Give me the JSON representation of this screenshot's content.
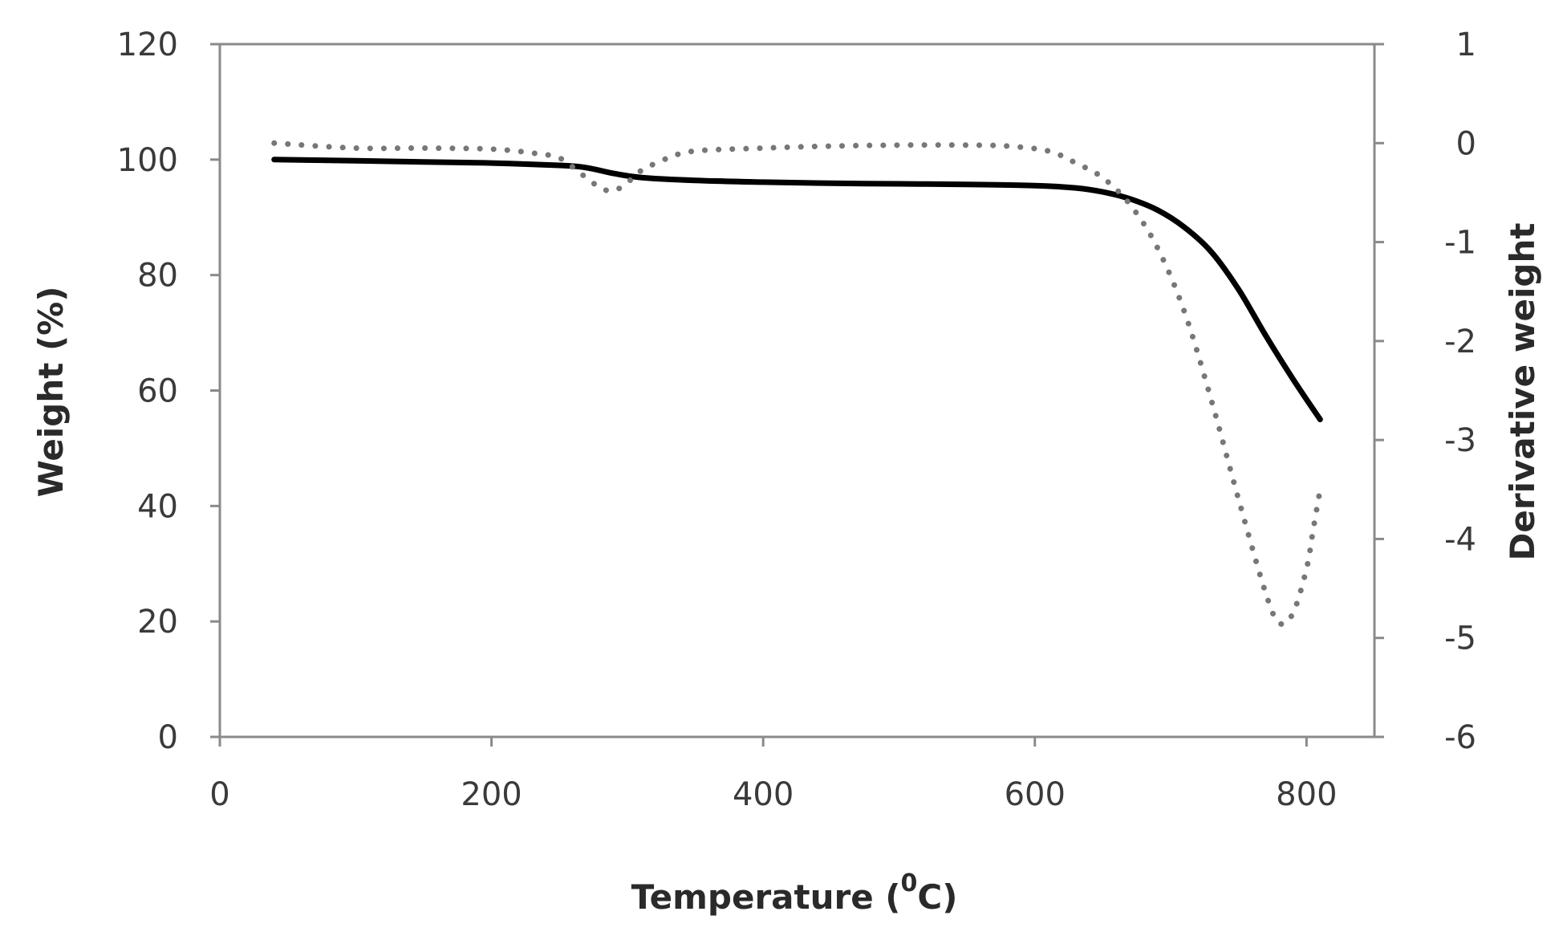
{
  "chart_data": {
    "type": "line",
    "title": "",
    "xlabel": {
      "main": "Temperature (",
      "superscript": "0",
      "unit": "C)"
    },
    "ylabel": "Weight (%)",
    "y2label": "Derivative weight",
    "xlim": [
      0,
      850
    ],
    "ylim": [
      0,
      120
    ],
    "y2lim": [
      -6,
      1
    ],
    "x_ticks": [
      "0",
      "200",
      "400",
      "600",
      "800"
    ],
    "y_ticks": [
      "0",
      "20",
      "40",
      "60",
      "80",
      "100",
      "120"
    ],
    "y2_ticks": [
      "-6",
      "-5",
      "-4",
      "-3",
      "-2",
      "-1",
      "0",
      "1"
    ],
    "grid": false,
    "legend": "none",
    "series": [
      {
        "axis": "left",
        "style": "solid",
        "color": "#000000",
        "x": [
          40,
          100,
          150,
          200,
          250,
          270,
          290,
          310,
          350,
          400,
          450,
          500,
          550,
          600,
          630,
          650,
          670,
          690,
          710,
          730,
          750,
          770,
          790,
          810
        ],
        "y": [
          100,
          99.8,
          99.6,
          99.4,
          99,
          98.6,
          97.6,
          96.9,
          96.4,
          96.1,
          95.9,
          95.8,
          95.7,
          95.5,
          95.1,
          94.4,
          93.2,
          91.3,
          88.3,
          84,
          77.5,
          69.5,
          62,
          55
        ]
      },
      {
        "axis": "right",
        "style": "dotted",
        "color": "#777777",
        "x": [
          40,
          100,
          150,
          200,
          230,
          250,
          265,
          280,
          290,
          300,
          310,
          330,
          350,
          400,
          450,
          500,
          550,
          580,
          610,
          630,
          650,
          670,
          690,
          710,
          730,
          750,
          770,
          780,
          790,
          800,
          805,
          810
        ],
        "y": [
          0,
          -0.05,
          -0.05,
          -0.06,
          -0.1,
          -0.15,
          -0.3,
          -0.45,
          -0.48,
          -0.4,
          -0.28,
          -0.15,
          -0.08,
          -0.05,
          -0.03,
          -0.02,
          -0.02,
          -0.03,
          -0.08,
          -0.2,
          -0.35,
          -0.62,
          -1.05,
          -1.7,
          -2.6,
          -3.6,
          -4.55,
          -4.85,
          -4.75,
          -4.3,
          -3.9,
          -3.5
        ]
      }
    ]
  }
}
